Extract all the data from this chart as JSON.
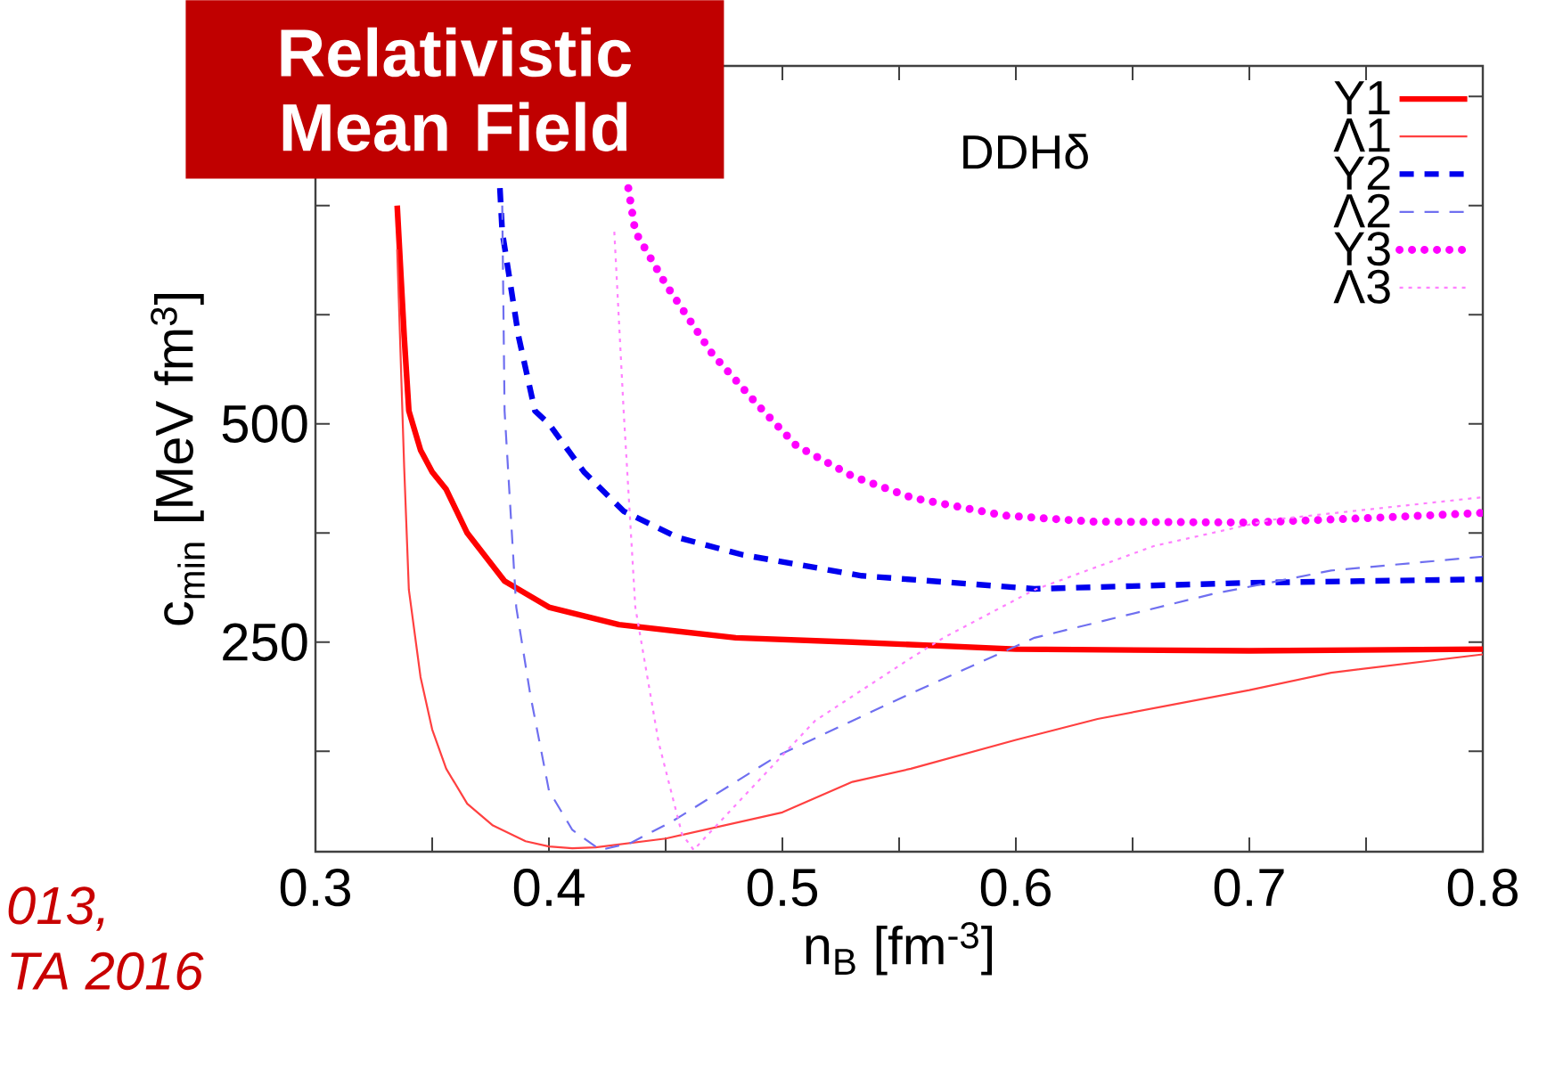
{
  "chart_data": {
    "type": "line",
    "xlabel": "n$_{B}$ [fm$^{-3}$]",
    "ylabel": "c$_{min}$ [MeV fm$^{3}$]",
    "annotations": [
      "Relativistic Mean Field",
      "DDHδ",
      "013,",
      "TA 2016"
    ],
    "xlim": [
      0.3,
      0.8
    ],
    "ylim": [
      10,
      910
    ],
    "xticks": [
      0.3,
      {
        "value": 0.35,
        "label": null
      },
      0.4,
      {
        "value": 0.45,
        "label": null
      },
      0.5,
      {
        "value": 0.55,
        "label": null
      },
      0.6,
      {
        "value": 0.65,
        "label": null
      },
      0.7,
      {
        "value": 0.75,
        "label": null
      },
      0.8
    ],
    "yticks": [
      {
        "value": 125,
        "label": null
      },
      250,
      {
        "value": 375,
        "label": null
      },
      500,
      {
        "value": 625,
        "label": null
      },
      {
        "value": 750,
        "label": null
      },
      {
        "value": 875,
        "label": null
      }
    ],
    "legend": "top right",
    "series": [
      {
        "name": "Y1",
        "color": "#ff0000",
        "line_style": "solid",
        "x": [
          0.335,
          0.338,
          0.34,
          0.345,
          0.35,
          0.356,
          0.365,
          0.381,
          0.4,
          0.43,
          0.48,
          0.53,
          0.6,
          0.7,
          0.8
        ],
        "values": [
          750,
          600,
          515,
          470,
          445,
          425,
          375,
          320,
          290,
          270,
          255,
          250,
          242,
          240,
          242
        ]
      },
      {
        "name": "Λ1",
        "color": "#ff4040",
        "line_style": "solid",
        "x": [
          0.335,
          0.338,
          0.34,
          0.345,
          0.35,
          0.356,
          0.365,
          0.376,
          0.39,
          0.4,
          0.41,
          0.42,
          0.45,
          0.5,
          0.53,
          0.555,
          0.6,
          0.635,
          0.7,
          0.735,
          0.8
        ],
        "values": [
          700,
          450,
          310,
          210,
          150,
          105,
          65,
          40,
          22,
          16,
          14,
          15,
          25,
          55,
          90,
          105,
          138,
          162,
          195,
          215,
          236
        ]
      },
      {
        "name": "Y2",
        "color": "#0000ee",
        "line_style": "dashed",
        "x": [
          0.379,
          0.38,
          0.387,
          0.394,
          0.4,
          0.415,
          0.432,
          0.455,
          0.483,
          0.534,
          0.608,
          0.7,
          0.8
        ],
        "values": [
          770,
          720,
          600,
          515,
          500,
          445,
          400,
          370,
          350,
          326,
          311,
          318,
          322
        ]
      },
      {
        "name": "Λ2",
        "color": "#6f6ff0",
        "line_style": "dashed",
        "x": [
          0.38,
          0.381,
          0.386,
          0.392,
          0.4,
          0.41,
          0.422,
          0.435,
          0.453,
          0.498,
          0.554,
          0.608,
          0.684,
          0.735,
          0.8
        ],
        "values": [
          750,
          515,
          290,
          190,
          80,
          35,
          12,
          20,
          45,
          120,
          190,
          255,
          305,
          332,
          348
        ]
      },
      {
        "name": "Y3",
        "color": "#ff00ff",
        "line_style": "dotted",
        "x": [
          0.434,
          0.437,
          0.45,
          0.47,
          0.49,
          0.506,
          0.53,
          0.556,
          0.595,
          0.633,
          0.7,
          0.75,
          0.8
        ],
        "values": [
          770,
          720,
          660,
          580,
          520,
          475,
          440,
          415,
          395,
          388,
          387,
          392,
          398
        ]
      },
      {
        "name": "Λ3",
        "color": "#ff80ff",
        "line_style": "dotted",
        "x": [
          0.428,
          0.432,
          0.437,
          0.447,
          0.457,
          0.462,
          0.47,
          0.483,
          0.514,
          0.554,
          0.569,
          0.608,
          0.659,
          0.709,
          0.8
        ],
        "values": [
          720,
          515,
          290,
          135,
          30,
          12,
          35,
          72,
          160,
          230,
          255,
          310,
          360,
          390,
          416
        ]
      }
    ]
  }
}
